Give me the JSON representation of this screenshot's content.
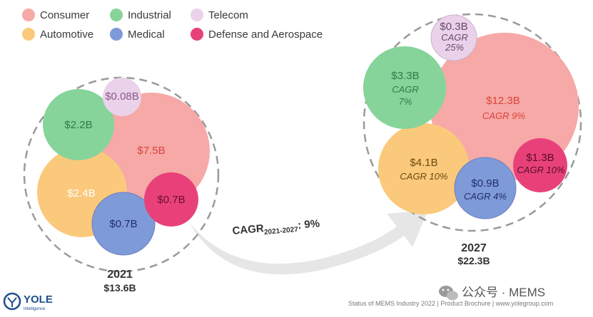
{
  "colors": {
    "consumer": "#f6a9a7",
    "industrial": "#86d49a",
    "telecom": "#ead3ea",
    "automotive": "#fbc97b",
    "medical": "#7f9ad8",
    "defense": "#e8417a",
    "cagr_arrow": "#e6e6e6"
  },
  "legend": [
    {
      "key": "consumer",
      "label": "Consumer"
    },
    {
      "key": "industrial",
      "label": "Industrial"
    },
    {
      "key": "telecom",
      "label": "Telecom"
    },
    {
      "key": "automotive",
      "label": "Automotive"
    },
    {
      "key": "medical",
      "label": "Medical"
    },
    {
      "key": "defense",
      "label": "Defense and Aerospace"
    }
  ],
  "chart_data": {
    "type": "bubble",
    "title": "",
    "unit": "$B",
    "years": [
      {
        "year": "2021",
        "total_label": "$13.6B",
        "total": 13.6,
        "segments": [
          {
            "key": "consumer",
            "value": 7.5,
            "label": "$7.5B"
          },
          {
            "key": "automotive",
            "value": 2.4,
            "label": "$2.4B"
          },
          {
            "key": "industrial",
            "value": 2.2,
            "label": "$2.2B"
          },
          {
            "key": "medical",
            "value": 0.7,
            "label": "$0.7B"
          },
          {
            "key": "defense",
            "value": 0.7,
            "label": "$0.7B"
          },
          {
            "key": "telecom",
            "value": 0.08,
            "label": "$0.08B"
          }
        ]
      },
      {
        "year": "2027",
        "total_label": "$22.3B",
        "total": 22.3,
        "segments": [
          {
            "key": "consumer",
            "value": 12.3,
            "label": "$12.3B",
            "cagr": "CAGR 9%"
          },
          {
            "key": "automotive",
            "value": 4.1,
            "label": "$4.1B",
            "cagr": "CAGR 10%"
          },
          {
            "key": "industrial",
            "value": 3.3,
            "label": "$3.3B",
            "cagr_line1": "CAGR",
            "cagr_line2": "7%"
          },
          {
            "key": "defense",
            "value": 1.3,
            "label": "$1.3B",
            "cagr": "CAGR 10%"
          },
          {
            "key": "medical",
            "value": 0.9,
            "label": "$0.9B",
            "cagr": "CAGR 4%"
          },
          {
            "key": "telecom",
            "value": 0.3,
            "label": "$0.3B",
            "cagr_line1": "CAGR",
            "cagr_line2": "25%"
          }
        ]
      }
    ],
    "overall_cagr": {
      "prefix": "CAGR",
      "sub": "2021-2027",
      "suffix": ": 9%"
    }
  },
  "branding": {
    "logo_text": "YOLE",
    "logo_sub": "Intelligence"
  },
  "footer": "Status of MEMS Industry 2022 | Product Brochure | www.yolegroup.com",
  "watermark": "公众号 · MEMS"
}
